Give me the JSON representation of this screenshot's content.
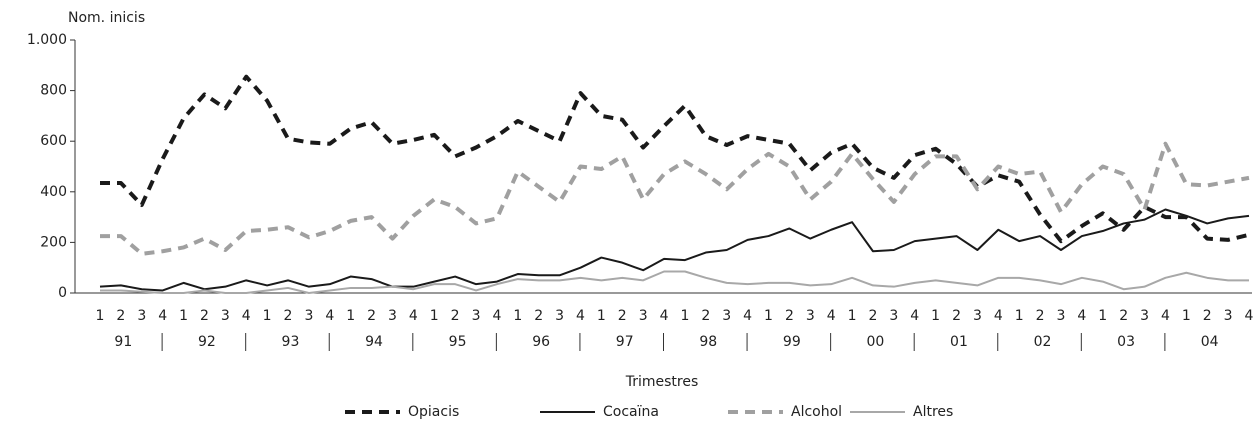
{
  "chart_data": {
    "type": "line",
    "y_label": "Nom. inicis",
    "x_label": "Trimestres",
    "categories": [
      "1",
      "2",
      "3",
      "4",
      "1",
      "2",
      "3",
      "4",
      "1",
      "2",
      "3",
      "4",
      "1",
      "2",
      "3",
      "4",
      "1",
      "2",
      "3",
      "4",
      "1",
      "2",
      "3",
      "4",
      "1",
      "2",
      "3",
      "4",
      "1",
      "2",
      "3",
      "4",
      "1",
      "2",
      "3",
      "4",
      "1",
      "2",
      "3",
      "4",
      "1",
      "2",
      "3",
      "4",
      "1",
      "2",
      "3",
      "4",
      "1",
      "2",
      "3",
      "4",
      "1",
      "2",
      "3",
      "4"
    ],
    "groups": [
      "91",
      "92",
      "93",
      "94",
      "95",
      "96",
      "97",
      "98",
      "99",
      "00",
      "01",
      "02",
      "03",
      "04"
    ],
    "ylim": [
      0,
      1000
    ],
    "yticks": [
      0,
      200,
      400,
      600,
      800,
      {
        "value": 1000,
        "label": "1.000"
      }
    ],
    "series": [
      {
        "name": "Opiacis",
        "color": "#1a1a1a",
        "dash": true,
        "values": [
          435,
          435,
          348,
          530,
          690,
          785,
          730,
          855,
          760,
          610,
          595,
          590,
          650,
          675,
          590,
          605,
          625,
          540,
          575,
          620,
          680,
          640,
          600,
          790,
          700,
          685,
          575,
          660,
          740,
          620,
          585,
          620,
          605,
          590,
          485,
          555,
          590,
          495,
          455,
          545,
          570,
          510,
          420,
          465,
          440,
          310,
          205,
          265,
          315,
          250,
          340,
          300,
          300,
          215,
          210,
          230
        ]
      },
      {
        "name": "Cocaïna",
        "color": "#1a1a1a",
        "dash": false,
        "values": [
          25,
          30,
          15,
          10,
          40,
          15,
          25,
          50,
          30,
          50,
          25,
          35,
          65,
          55,
          25,
          25,
          45,
          65,
          35,
          45,
          75,
          70,
          70,
          100,
          140,
          120,
          90,
          135,
          130,
          160,
          170,
          210,
          225,
          255,
          215,
          250,
          280,
          165,
          170,
          205,
          215,
          225,
          170,
          250,
          205,
          225,
          170,
          225,
          245,
          275,
          290,
          330,
          305,
          275,
          295,
          305
        ]
      },
      {
        "name": "Alcohol",
        "color": "#a0a0a0",
        "dash": true,
        "values": [
          225,
          225,
          155,
          165,
          180,
          215,
          170,
          245,
          250,
          260,
          220,
          245,
          285,
          300,
          215,
          305,
          370,
          340,
          275,
          295,
          480,
          420,
          360,
          500,
          490,
          540,
          370,
          470,
          520,
          470,
          410,
          490,
          550,
          500,
          370,
          440,
          550,
          450,
          360,
          470,
          540,
          540,
          410,
          500,
          470,
          480,
          320,
          430,
          500,
          470,
          330,
          590,
          430,
          425,
          440,
          455
        ]
      },
      {
        "name": "Altres",
        "color": "#a8a8a8",
        "dash": false,
        "values": [
          10,
          10,
          5,
          0,
          0,
          10,
          0,
          0,
          10,
          20,
          0,
          10,
          20,
          20,
          25,
          15,
          35,
          35,
          10,
          35,
          55,
          50,
          50,
          60,
          50,
          60,
          50,
          85,
          85,
          60,
          40,
          35,
          40,
          40,
          30,
          35,
          60,
          30,
          25,
          40,
          50,
          40,
          30,
          60,
          60,
          50,
          35,
          60,
          45,
          15,
          25,
          60,
          80,
          60,
          50,
          50
        ]
      }
    ]
  }
}
